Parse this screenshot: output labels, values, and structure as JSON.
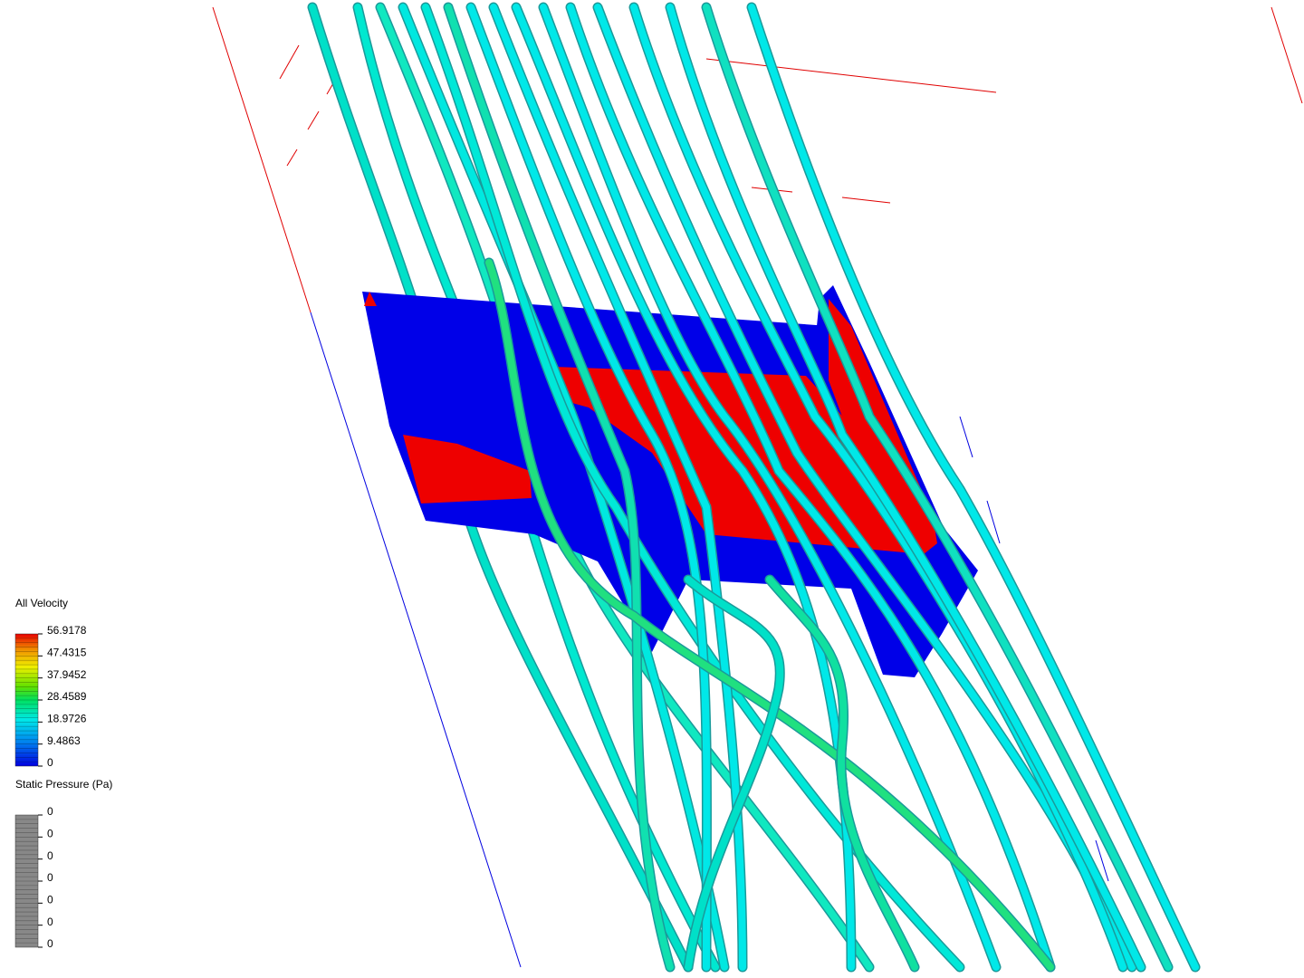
{
  "legends": [
    {
      "title": "All Velocity",
      "labels": [
        "56.9178",
        "47.4315",
        "37.9452",
        "28.4589",
        "18.9726",
        "9.4863",
        "0"
      ]
    },
    {
      "title": "Static Pressure (Pa)",
      "labels": [
        "0",
        "0",
        "0",
        "0",
        "0",
        "0",
        "0"
      ]
    }
  ]
}
